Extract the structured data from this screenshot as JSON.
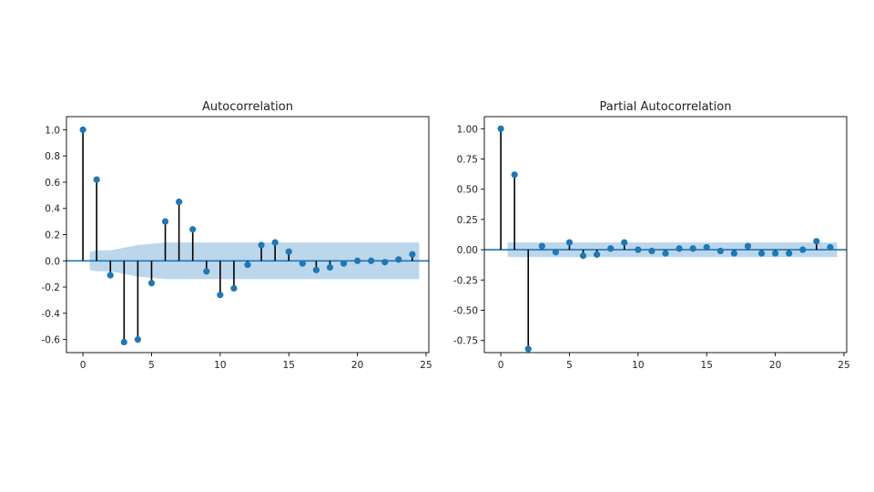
{
  "chart_data": [
    {
      "type": "stem",
      "title": "Autocorrelation",
      "xlim": [
        -1.2,
        25.2
      ],
      "ylim": [
        -0.7,
        1.1
      ],
      "xticks": [
        "0",
        "5",
        "10",
        "15",
        "20",
        "25"
      ],
      "yticks": [
        "1.0",
        "0.8",
        "0.6",
        "0.4",
        "0.2",
        "0.0",
        "-0.2",
        "-0.4",
        "-0.6"
      ],
      "x": [
        0,
        1,
        2,
        3,
        4,
        5,
        6,
        7,
        8,
        9,
        10,
        11,
        12,
        13,
        14,
        15,
        16,
        17,
        18,
        19,
        20,
        21,
        22,
        23,
        24
      ],
      "values": [
        1.0,
        0.62,
        -0.11,
        -0.62,
        -0.6,
        -0.17,
        0.3,
        0.45,
        0.24,
        -0.08,
        -0.26,
        -0.21,
        -0.03,
        0.12,
        0.14,
        0.07,
        -0.02,
        -0.07,
        -0.05,
        -0.02,
        0.0,
        0.0,
        -0.01,
        0.01,
        0.05
      ],
      "confidence_band": {
        "x": [
          0.5,
          1,
          2,
          3,
          4,
          5,
          6,
          7,
          8,
          9,
          10,
          11,
          12,
          13,
          14,
          15,
          16,
          17,
          18,
          19,
          20,
          21,
          22,
          23,
          24,
          24.5
        ],
        "upper": [
          0.07,
          0.08,
          0.08,
          0.1,
          0.12,
          0.13,
          0.14,
          0.14,
          0.14,
          0.14,
          0.14,
          0.14,
          0.14,
          0.14,
          0.14,
          0.14,
          0.14,
          0.14,
          0.14,
          0.14,
          0.14,
          0.14,
          0.14,
          0.14,
          0.14,
          0.14
        ],
        "lower": [
          -0.07,
          -0.08,
          -0.08,
          -0.1,
          -0.12,
          -0.13,
          -0.14,
          -0.14,
          -0.14,
          -0.14,
          -0.14,
          -0.14,
          -0.14,
          -0.14,
          -0.14,
          -0.14,
          -0.14,
          -0.14,
          -0.14,
          -0.14,
          -0.14,
          -0.14,
          -0.14,
          -0.14,
          -0.14,
          -0.14
        ]
      }
    },
    {
      "type": "stem",
      "title": "Partial Autocorrelation",
      "xlim": [
        -1.2,
        25.2
      ],
      "ylim": [
        -0.85,
        1.1
      ],
      "xticks": [
        "0",
        "5",
        "10",
        "15",
        "20",
        "25"
      ],
      "yticks": [
        "1.00",
        "0.75",
        "0.50",
        "0.25",
        "0.00",
        "-0.25",
        "-0.50",
        "-0.75"
      ],
      "x": [
        0,
        1,
        2,
        3,
        4,
        5,
        6,
        7,
        8,
        9,
        10,
        11,
        12,
        13,
        14,
        15,
        16,
        17,
        18,
        19,
        20,
        21,
        22,
        23,
        24
      ],
      "values": [
        1.0,
        0.62,
        -0.82,
        0.03,
        -0.02,
        0.06,
        -0.05,
        -0.04,
        0.01,
        0.06,
        0.0,
        -0.01,
        -0.03,
        0.01,
        0.01,
        0.02,
        -0.01,
        -0.03,
        0.03,
        -0.03,
        -0.03,
        -0.03,
        0.0,
        0.07,
        0.02
      ],
      "confidence_band": {
        "x": [
          0.5,
          24.5
        ],
        "upper": [
          0.06,
          0.06
        ],
        "lower": [
          -0.06,
          -0.06
        ]
      }
    }
  ],
  "style": {
    "marker_color": "#1f77b4",
    "stem_color": "#000000",
    "band_color": "#a6c8e6",
    "zero_line_color": "#1f77b4"
  }
}
